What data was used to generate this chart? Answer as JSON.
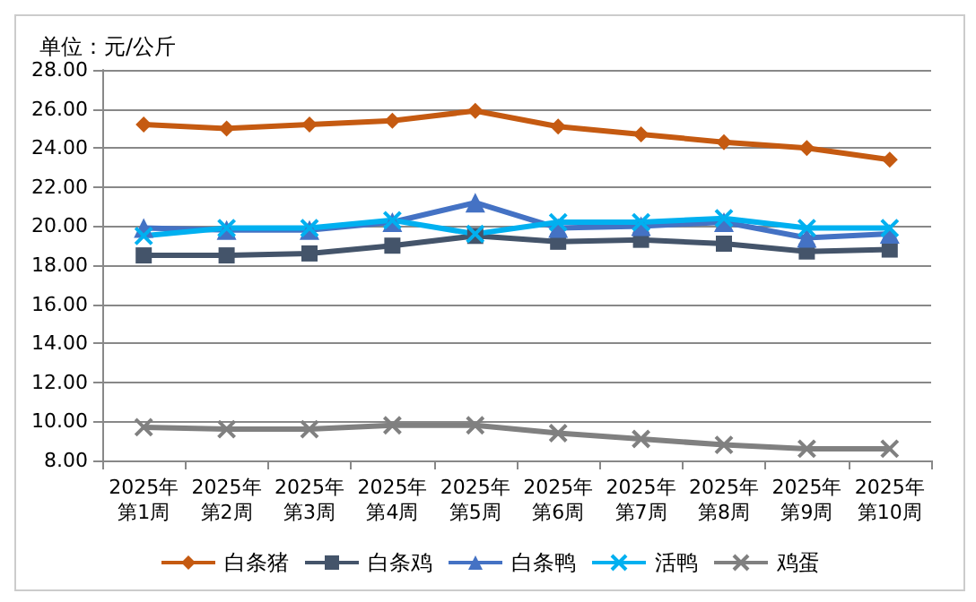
{
  "chart_data": {
    "type": "line",
    "title": "单位：元/公斤",
    "categories": [
      "2025年第1周",
      "2025年第2周",
      "2025年第3周",
      "2025年第4周",
      "2025年第5周",
      "2025年第6周",
      "2025年第7周",
      "2025年第8周",
      "2025年第9周",
      "2025年第10周"
    ],
    "series": [
      {
        "name": "白条猪",
        "color": "#c55a11",
        "marker": "diamond",
        "values": [
          25.2,
          25.0,
          25.2,
          25.4,
          25.9,
          25.1,
          24.7,
          24.3,
          24.0,
          23.4
        ]
      },
      {
        "name": "白条鸡",
        "color": "#44546a",
        "marker": "square",
        "values": [
          18.5,
          18.5,
          18.6,
          19.0,
          19.5,
          19.2,
          19.3,
          19.1,
          18.7,
          18.8
        ]
      },
      {
        "name": "白条鸭",
        "color": "#4472c4",
        "marker": "triangle",
        "values": [
          19.9,
          19.8,
          19.8,
          20.2,
          21.2,
          19.9,
          20.0,
          20.2,
          19.4,
          19.6
        ]
      },
      {
        "name": "活鸭",
        "color": "#00b0f0",
        "marker": "cross",
        "values": [
          19.5,
          19.9,
          19.9,
          20.3,
          19.6,
          20.2,
          20.2,
          20.4,
          19.9,
          19.9
        ]
      },
      {
        "name": "鸡蛋",
        "color": "#808080",
        "marker": "cross",
        "values": [
          9.7,
          9.6,
          9.6,
          9.8,
          9.8,
          9.4,
          9.1,
          8.8,
          8.6,
          8.6
        ]
      }
    ],
    "ylim": [
      8,
      28
    ],
    "yticks": [
      {
        "value": 8,
        "label": "8.00"
      },
      {
        "value": 10,
        "label": "10.00"
      },
      {
        "value": 12,
        "label": "12.00"
      },
      {
        "value": 14,
        "label": "14.00"
      },
      {
        "value": 16,
        "label": "16.00"
      },
      {
        "value": 18,
        "label": "18.00"
      },
      {
        "value": 20,
        "label": "20.00"
      },
      {
        "value": 22,
        "label": "22.00"
      },
      {
        "value": 24,
        "label": "24.00"
      },
      {
        "value": 26,
        "label": "26.00"
      },
      {
        "value": 28,
        "label": "28.00"
      }
    ],
    "grid": "y",
    "legend": "bottom",
    "line_style": "solid"
  }
}
